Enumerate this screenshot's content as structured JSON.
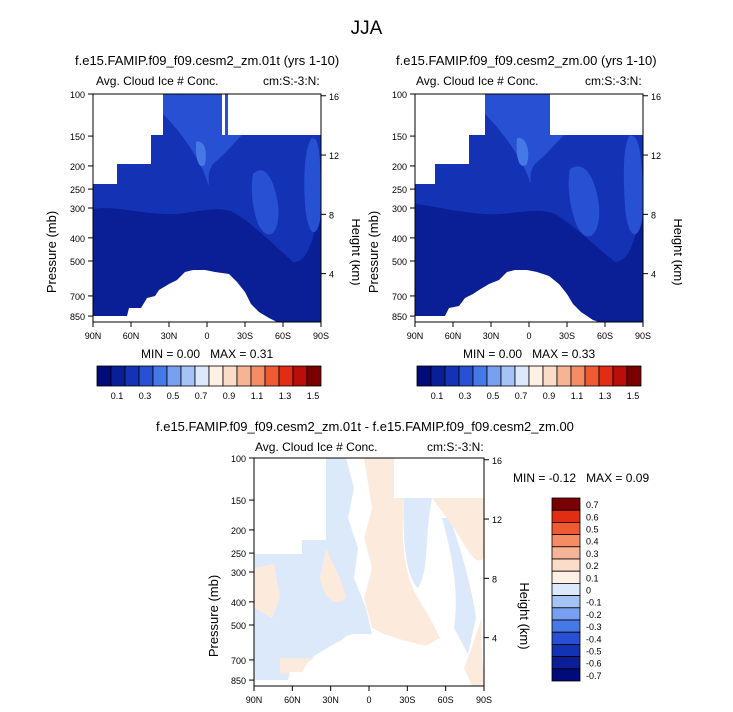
{
  "title": "JJA",
  "colors": {
    "frame": "#000000",
    "land_mask": "#ffffff"
  },
  "chart_data": [
    {
      "id": "p1",
      "type": "contour",
      "title": "f.e15.FAMIP.f09_f09.cesm2_zm.01t (yrs 1-10)",
      "left_label": "Avg. Cloud Ice # Conc.",
      "right_label": "cm:S:-3:N:",
      "ylabel": "Pressure (mb)",
      "ylabel_right": "Height (km)",
      "x_ticks": [
        "90N",
        "60N",
        "30N",
        "0",
        "30S",
        "60S",
        "90S"
      ],
      "y_ticks": [
        "100",
        "150",
        "200",
        "250",
        "300",
        "400",
        "500",
        "700",
        "850"
      ],
      "height_ticks": [
        "16",
        "12",
        "8",
        "4"
      ],
      "ylim_mb": [
        100,
        900
      ],
      "min_label": "MIN =",
      "min_value": "0.00",
      "max_label": "MAX =",
      "max_value": "0.31"
    },
    {
      "id": "p2",
      "type": "contour",
      "title": "f.e15.FAMIP.f09_f09.cesm2_zm.00 (yrs 1-10)",
      "left_label": "Avg. Cloud Ice # Conc.",
      "right_label": "cm:S:-3:N:",
      "ylabel": "Pressure (mb)",
      "ylabel_right": "Height (km)",
      "x_ticks": [
        "90N",
        "60N",
        "30N",
        "0",
        "30S",
        "60S",
        "90S"
      ],
      "y_ticks": [
        "100",
        "150",
        "200",
        "250",
        "300",
        "400",
        "500",
        "700",
        "850"
      ],
      "height_ticks": [
        "16",
        "12",
        "8",
        "4"
      ],
      "ylim_mb": [
        100,
        900
      ],
      "min_label": "MIN =",
      "min_value": "0.00",
      "max_label": "MAX =",
      "max_value": "0.33"
    },
    {
      "id": "diff",
      "type": "contour",
      "title": "f.e15.FAMIP.f09_f09.cesm2_zm.01t - f.e15.FAMIP.f09_f09.cesm2_zm.00",
      "left_label": "Avg. Cloud Ice # Conc.",
      "right_label": "cm:S:-3:N:",
      "ylabel": "Pressure (mb)",
      "ylabel_right": "Height (km)",
      "x_ticks": [
        "90N",
        "60N",
        "30N",
        "0",
        "30S",
        "60S",
        "90S"
      ],
      "y_ticks": [
        "100",
        "150",
        "200",
        "250",
        "300",
        "400",
        "500",
        "700",
        "850"
      ],
      "height_ticks": [
        "16",
        "12",
        "8",
        "4"
      ],
      "ylim_mb": [
        100,
        900
      ],
      "min_label": "MIN =",
      "min_value": "-0.12",
      "max_label": "MAX =",
      "max_value": "0.09"
    }
  ],
  "colorbar_abs": {
    "colors": [
      "#000a78",
      "#0a1e96",
      "#1432b4",
      "#2850d2",
      "#4678e6",
      "#78a0f0",
      "#a5c3f5",
      "#dce9fa",
      "#fff0e6",
      "#fadcc8",
      "#f5b496",
      "#f58c64",
      "#f05a32",
      "#e12d14",
      "#b90f0a",
      "#780000"
    ],
    "labels": [
      "0.1",
      "0.3",
      "0.5",
      "0.7",
      "0.9",
      "1.1",
      "1.3",
      "1.5"
    ]
  },
  "colorbar_diff": {
    "colors": [
      "#000a78",
      "#0a1e96",
      "#1432b4",
      "#2850d2",
      "#4678e6",
      "#78a0f0",
      "#a5c3f5",
      "#dce9fa",
      "#fff0e6",
      "#fadcc8",
      "#f5b496",
      "#f58c64",
      "#f05a32",
      "#e12d14",
      "#780000"
    ],
    "labels": [
      "0.7",
      "0.6",
      "0.5",
      "0.4",
      "0.3",
      "0.2",
      "0.1",
      "0",
      "-0.1",
      "-0.2",
      "-0.3",
      "-0.4",
      "-0.5",
      "-0.6",
      "-0.7"
    ]
  }
}
